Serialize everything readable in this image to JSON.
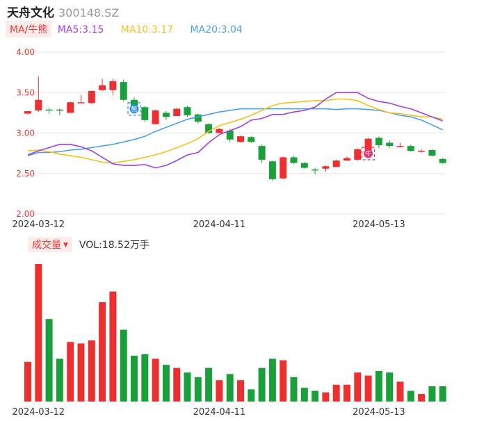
{
  "stock": {
    "name": "天舟文化",
    "code": "300148.SZ"
  },
  "colors": {
    "up": "#ee2f2f",
    "down": "#1aa03a",
    "ma5": "#a040e0",
    "ma10": "#f2c21b",
    "ma20": "#4aa0e8",
    "axis": "#e53935",
    "grid": "#e6e6e6"
  },
  "ma_legend": {
    "chip": "MA/牛熊",
    "items": [
      {
        "key": "ma5",
        "text": "MA5:3.15"
      },
      {
        "key": "ma10",
        "text": "MA10:3.17"
      },
      {
        "key": "ma20",
        "text": "MA20:3.04"
      }
    ]
  },
  "volume_legend": {
    "chip": "成交量",
    "caret_icon": "caret-down-icon",
    "text": "VOL:18.52万手"
  },
  "chart_data": [
    {
      "type": "candlestick",
      "ylim": [
        2.0,
        4.0
      ],
      "yticks": [
        "4.00",
        "3.50",
        "3.00",
        "2.50",
        "2.00"
      ],
      "xticks": [
        {
          "index": 1,
          "label": "2024-03-12"
        },
        {
          "index": 18,
          "label": "2024-04-11"
        },
        {
          "index": 33,
          "label": "2024-05-13"
        }
      ],
      "candles": [
        {
          "o": 3.24,
          "h": 3.27,
          "l": 3.23,
          "c": 3.27
        },
        {
          "o": 3.28,
          "h": 3.7,
          "l": 3.26,
          "c": 3.41
        },
        {
          "o": 3.29,
          "h": 3.31,
          "l": 3.24,
          "c": 3.28
        },
        {
          "o": 3.29,
          "h": 3.3,
          "l": 3.22,
          "c": 3.28
        },
        {
          "o": 3.25,
          "h": 3.39,
          "l": 3.25,
          "c": 3.38
        },
        {
          "o": 3.37,
          "h": 3.47,
          "l": 3.37,
          "c": 3.38
        },
        {
          "o": 3.37,
          "h": 3.53,
          "l": 3.36,
          "c": 3.52
        },
        {
          "o": 3.53,
          "h": 3.67,
          "l": 3.52,
          "c": 3.59
        },
        {
          "o": 3.53,
          "h": 3.67,
          "l": 3.47,
          "c": 3.64
        },
        {
          "o": 3.63,
          "h": 3.66,
          "l": 3.39,
          "c": 3.41
        },
        {
          "o": 3.41,
          "h": 3.44,
          "l": 3.28,
          "c": 3.34
        },
        {
          "o": 3.32,
          "h": 3.34,
          "l": 3.14,
          "c": 3.16
        },
        {
          "o": 3.11,
          "h": 3.29,
          "l": 3.11,
          "c": 3.28
        },
        {
          "o": 3.25,
          "h": 3.27,
          "l": 3.16,
          "c": 3.2
        },
        {
          "o": 3.21,
          "h": 3.31,
          "l": 3.21,
          "c": 3.3
        },
        {
          "o": 3.32,
          "h": 3.34,
          "l": 3.2,
          "c": 3.22
        },
        {
          "o": 3.23,
          "h": 3.24,
          "l": 3.12,
          "c": 3.14
        },
        {
          "o": 3.11,
          "h": 3.12,
          "l": 2.99,
          "c": 3.0
        },
        {
          "o": 3.0,
          "h": 3.06,
          "l": 3.0,
          "c": 3.05
        },
        {
          "o": 3.03,
          "h": 3.05,
          "l": 2.89,
          "c": 2.92
        },
        {
          "o": 2.89,
          "h": 2.97,
          "l": 2.88,
          "c": 2.96
        },
        {
          "o": 2.95,
          "h": 2.96,
          "l": 2.88,
          "c": 2.89
        },
        {
          "o": 2.84,
          "h": 2.86,
          "l": 2.63,
          "c": 2.67
        },
        {
          "o": 2.65,
          "h": 2.66,
          "l": 2.41,
          "c": 2.43
        },
        {
          "o": 2.44,
          "h": 2.71,
          "l": 2.43,
          "c": 2.7
        },
        {
          "o": 2.7,
          "h": 2.72,
          "l": 2.62,
          "c": 2.63
        },
        {
          "o": 2.63,
          "h": 2.64,
          "l": 2.56,
          "c": 2.57
        },
        {
          "o": 2.55,
          "h": 2.57,
          "l": 2.49,
          "c": 2.54
        },
        {
          "o": 2.56,
          "h": 2.6,
          "l": 2.52,
          "c": 2.59
        },
        {
          "o": 2.58,
          "h": 2.67,
          "l": 2.58,
          "c": 2.66
        },
        {
          "o": 2.66,
          "h": 2.71,
          "l": 2.66,
          "c": 2.69
        },
        {
          "o": 2.67,
          "h": 2.81,
          "l": 2.66,
          "c": 2.8
        },
        {
          "o": 2.79,
          "h": 2.94,
          "l": 2.79,
          "c": 2.93
        },
        {
          "o": 2.94,
          "h": 2.96,
          "l": 2.81,
          "c": 2.85
        },
        {
          "o": 2.88,
          "h": 2.91,
          "l": 2.82,
          "c": 2.84
        },
        {
          "o": 2.83,
          "h": 2.88,
          "l": 2.82,
          "c": 2.84
        },
        {
          "o": 2.84,
          "h": 2.86,
          "l": 2.77,
          "c": 2.78
        },
        {
          "o": 2.77,
          "h": 2.8,
          "l": 2.76,
          "c": 2.78
        },
        {
          "o": 2.79,
          "h": 2.8,
          "l": 2.71,
          "c": 2.72
        },
        {
          "o": 2.68,
          "h": 2.69,
          "l": 2.62,
          "c": 2.63
        }
      ],
      "ma": {
        "ma5": [
          2.73,
          2.78,
          2.82,
          2.86,
          2.86,
          2.83,
          2.78,
          2.7,
          2.62,
          2.6,
          2.6,
          2.61,
          2.57,
          2.6,
          2.66,
          2.73,
          2.76,
          2.88,
          2.98,
          3.03,
          3.08,
          3.16,
          3.18,
          3.23,
          3.23,
          3.26,
          3.28,
          3.32,
          3.42,
          3.5,
          3.5,
          3.5,
          3.43,
          3.39,
          3.37,
          3.33,
          3.3,
          3.25,
          3.2,
          3.15
        ],
        "ma10": [
          2.78,
          2.79,
          2.77,
          2.74,
          2.72,
          2.7,
          2.67,
          2.64,
          2.63,
          2.65,
          2.67,
          2.7,
          2.73,
          2.77,
          2.82,
          2.87,
          2.93,
          3.02,
          3.09,
          3.13,
          3.17,
          3.22,
          3.28,
          3.34,
          3.37,
          3.38,
          3.39,
          3.4,
          3.4,
          3.42,
          3.42,
          3.4,
          3.34,
          3.29,
          3.25,
          3.24,
          3.22,
          3.2,
          3.2,
          3.17
        ],
        "ma20": [
          2.72,
          2.76,
          2.76,
          2.77,
          2.79,
          2.8,
          2.82,
          2.84,
          2.86,
          2.89,
          2.92,
          2.96,
          3.02,
          3.07,
          3.12,
          3.17,
          3.2,
          3.23,
          3.26,
          3.28,
          3.3,
          3.3,
          3.3,
          3.3,
          3.3,
          3.3,
          3.3,
          3.3,
          3.3,
          3.29,
          3.3,
          3.3,
          3.29,
          3.28,
          3.25,
          3.22,
          3.2,
          3.16,
          3.1,
          3.04
        ]
      },
      "markers": [
        {
          "index": 10,
          "label": "熊",
          "type": "bear"
        },
        {
          "index": 32,
          "label": "牛",
          "type": "bull"
        }
      ]
    },
    {
      "type": "bar",
      "title": "成交量",
      "values": [
        26,
        90,
        54,
        28,
        39,
        38,
        40,
        65,
        72,
        47,
        30,
        31,
        28,
        24,
        22,
        19,
        16,
        22,
        14,
        18,
        14,
        8,
        22,
        28,
        27,
        16,
        9,
        7,
        6,
        11,
        11,
        19,
        17,
        20,
        19,
        13,
        7,
        5,
        10,
        10
      ],
      "ylim": [
        0,
        90
      ]
    }
  ]
}
